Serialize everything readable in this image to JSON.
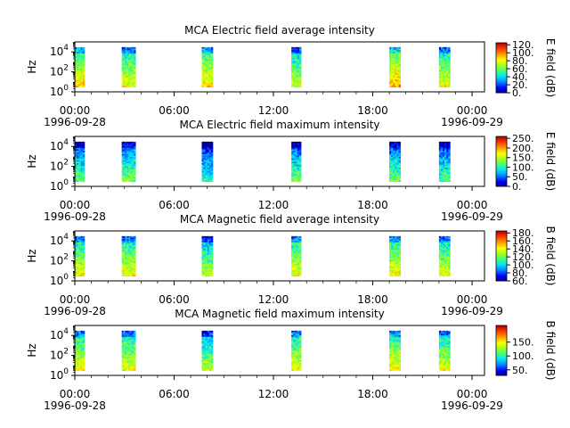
{
  "colors": {
    "colormap": [
      "#000080",
      "#0000ff",
      "#0080ff",
      "#00e0ff",
      "#40ff80",
      "#a0ff20",
      "#ffff00",
      "#ffa000",
      "#ff4000",
      "#c00000"
    ],
    "background": "#ffffff",
    "axes": "#000000"
  },
  "x_ticks": [
    "00:00",
    "06:00",
    "12:00",
    "18:00",
    "00:00"
  ],
  "x_dates": [
    "1996-09-28",
    "1996-09-29"
  ],
  "chart_data": [
    {
      "type": "heatmap",
      "title": "MCA  Electric field average intensity",
      "ylabel": "Hz",
      "colorbar_label": "E field (dB)",
      "colorbar_range": [
        0,
        125
      ],
      "colorbar_ticks": [
        "120.",
        "100.",
        "80.",
        "60.",
        "40.",
        "20.",
        "0."
      ],
      "colorbar_tick_values": [
        120,
        100,
        80,
        60,
        40,
        20,
        0
      ],
      "yscale": "log",
      "yticks": [
        "10",
        "10",
        "10"
      ],
      "yticks_exp": [
        "4",
        "2",
        "0"
      ],
      "ytick_values": [
        10000,
        100,
        1
      ],
      "xlim": [
        "1996-09-28 00:00",
        "1996-09-29 00:45"
      ],
      "ylim": [
        1,
        100000
      ],
      "segments": [
        {
          "start": "00:00",
          "end": "00:35",
          "base_level": 0.55
        },
        {
          "start": "02:50",
          "end": "03:40",
          "base_level": 0.5
        },
        {
          "start": "07:40",
          "end": "08:20",
          "base_level": 0.55
        },
        {
          "start": "13:05",
          "end": "13:40",
          "base_level": 0.45
        },
        {
          "start": "19:00",
          "end": "19:40",
          "base_level": 0.6
        },
        {
          "start": "22:00",
          "end": "22:40",
          "base_level": 0.5
        }
      ]
    },
    {
      "type": "heatmap",
      "title": "MCA  Electric field maximum intensity",
      "ylabel": "Hz",
      "colorbar_label": "E field (dB)",
      "colorbar_range": [
        0,
        260
      ],
      "colorbar_ticks": [
        "250.",
        "200.",
        "150.",
        "100.",
        "50.",
        "0."
      ],
      "colorbar_tick_values": [
        250,
        200,
        150,
        100,
        50,
        0
      ],
      "yscale": "log",
      "yticks": [
        "10",
        "10",
        "10"
      ],
      "yticks_exp": [
        "4",
        "2",
        "0"
      ],
      "ytick_values": [
        10000,
        100,
        1
      ],
      "xlim": [
        "1996-09-28 00:00",
        "1996-09-29 00:45"
      ],
      "ylim": [
        1,
        100000
      ],
      "segments": [
        {
          "start": "00:00",
          "end": "00:35",
          "base_level": 0.33
        },
        {
          "start": "02:50",
          "end": "03:40",
          "base_level": 0.36
        },
        {
          "start": "07:40",
          "end": "08:20",
          "base_level": 0.25
        },
        {
          "start": "13:05",
          "end": "13:40",
          "base_level": 0.33
        },
        {
          "start": "19:00",
          "end": "19:40",
          "base_level": 0.33
        },
        {
          "start": "22:00",
          "end": "22:40",
          "base_level": 0.3
        }
      ]
    },
    {
      "type": "heatmap",
      "title": "MCA  Magnetic field average intensity",
      "ylabel": "Hz",
      "colorbar_label": "B field (dB)",
      "colorbar_range": [
        60,
        185
      ],
      "colorbar_ticks": [
        "180.",
        "160.",
        "140.",
        "120.",
        "100.",
        "80.",
        "60."
      ],
      "colorbar_tick_values": [
        180,
        160,
        140,
        120,
        100,
        80,
        60
      ],
      "yscale": "log",
      "yticks": [
        "10",
        "10",
        "10"
      ],
      "yticks_exp": [
        "4",
        "2",
        "0"
      ],
      "ytick_values": [
        10000,
        100,
        1
      ],
      "xlim": [
        "1996-09-28 00:00",
        "1996-09-29 00:45"
      ],
      "ylim": [
        1,
        100000
      ],
      "segments": [
        {
          "start": "00:00",
          "end": "00:35",
          "base_level": 0.5
        },
        {
          "start": "02:50",
          "end": "03:40",
          "base_level": 0.5
        },
        {
          "start": "07:40",
          "end": "08:20",
          "base_level": 0.42
        },
        {
          "start": "13:05",
          "end": "13:40",
          "base_level": 0.5
        },
        {
          "start": "19:00",
          "end": "19:40",
          "base_level": 0.52
        },
        {
          "start": "22:00",
          "end": "22:40",
          "base_level": 0.48
        }
      ]
    },
    {
      "type": "heatmap",
      "title": "MCA  Magnetic field maximum intensity",
      "ylabel": "Hz",
      "colorbar_label": "B field (dB)",
      "colorbar_range": [
        30,
        210
      ],
      "colorbar_ticks": [
        "150.",
        "100.",
        "50."
      ],
      "colorbar_tick_values": [
        150,
        100,
        50
      ],
      "yscale": "log",
      "yticks": [
        "10",
        "10",
        "10"
      ],
      "yticks_exp": [
        "4",
        "2",
        "0"
      ],
      "ytick_values": [
        10000,
        100,
        1
      ],
      "xlim": [
        "1996-09-28 00:00",
        "1996-09-29 00:45"
      ],
      "ylim": [
        1,
        100000
      ],
      "segments": [
        {
          "start": "00:00",
          "end": "00:35",
          "base_level": 0.5
        },
        {
          "start": "02:50",
          "end": "03:40",
          "base_level": 0.5
        },
        {
          "start": "07:40",
          "end": "08:20",
          "base_level": 0.42
        },
        {
          "start": "13:05",
          "end": "13:40",
          "base_level": 0.5
        },
        {
          "start": "19:00",
          "end": "19:40",
          "base_level": 0.52
        },
        {
          "start": "22:00",
          "end": "22:40",
          "base_level": 0.48
        }
      ]
    }
  ]
}
